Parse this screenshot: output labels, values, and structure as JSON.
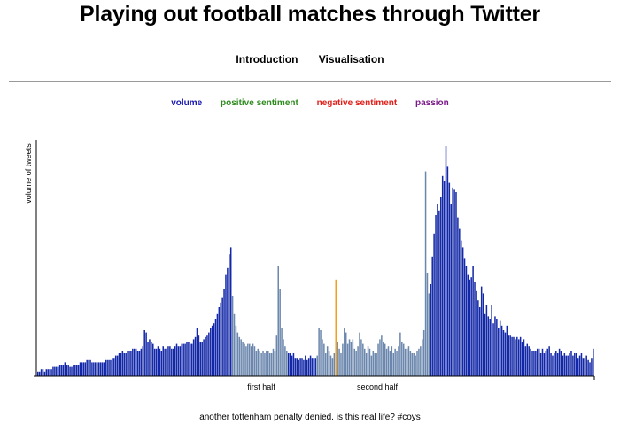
{
  "page": {
    "title": "Playing out football matches through Twitter",
    "nav": [
      "Introduction",
      "Visualisation"
    ],
    "caption": "another tottenham penalty denied. is this real life? #coys"
  },
  "legend": [
    {
      "label": "volume",
      "color": "#1a1ab0"
    },
    {
      "label": "positive sentiment",
      "color": "#2e8b1e"
    },
    {
      "label": "negative sentiment",
      "color": "#e0201a"
    },
    {
      "label": "passion",
      "color": "#7a1a8a"
    }
  ],
  "colors": {
    "volume": "#1328a8",
    "in_match": "#6b87ad",
    "marker": "#f0a020",
    "axis": "#000000"
  },
  "chart_data": {
    "type": "bar",
    "ylabel": "volume of tweets",
    "xlabel": "",
    "period_labels": [
      "first half",
      "second half"
    ],
    "ylim": [
      0,
      100
    ],
    "values": [
      2,
      2,
      3,
      3,
      2,
      3,
      3,
      3,
      3,
      4,
      4,
      4,
      4,
      5,
      5,
      5,
      6,
      5,
      5,
      4,
      4,
      5,
      5,
      5,
      5,
      6,
      6,
      6,
      6,
      7,
      7,
      7,
      6,
      6,
      6,
      6,
      6,
      6,
      6,
      6,
      7,
      7,
      7,
      7,
      8,
      8,
      9,
      9,
      10,
      10,
      11,
      10,
      10,
      11,
      11,
      11,
      12,
      12,
      12,
      11,
      11,
      12,
      13,
      20,
      19,
      15,
      16,
      15,
      14,
      12,
      12,
      13,
      12,
      11,
      13,
      12,
      12,
      13,
      13,
      12,
      12,
      13,
      14,
      13,
      13,
      14,
      14,
      14,
      15,
      15,
      14,
      14,
      16,
      17,
      21,
      18,
      15,
      15,
      16,
      17,
      18,
      19,
      21,
      22,
      23,
      25,
      27,
      30,
      32,
      34,
      38,
      44,
      47,
      53,
      56,
      35,
      27,
      22,
      19,
      17,
      16,
      15,
      14,
      13,
      14,
      14,
      13,
      14,
      13,
      11,
      12,
      11,
      10,
      11,
      10,
      11,
      11,
      10,
      10,
      12,
      11,
      18,
      48,
      38,
      21,
      16,
      13,
      11,
      10,
      10,
      9,
      10,
      8,
      8,
      7,
      8,
      8,
      7,
      9,
      7,
      8,
      9,
      8,
      8,
      8,
      9,
      21,
      20,
      16,
      14,
      10,
      13,
      11,
      9,
      8,
      10,
      11,
      15,
      12,
      10,
      14,
      21,
      19,
      14,
      16,
      15,
      16,
      12,
      11,
      13,
      19,
      16,
      14,
      12,
      10,
      13,
      12,
      9,
      11,
      10,
      10,
      14,
      16,
      18,
      15,
      14,
      12,
      13,
      11,
      13,
      10,
      12,
      11,
      13,
      19,
      15,
      14,
      12,
      12,
      13,
      11,
      10,
      10,
      9,
      11,
      12,
      13,
      16,
      20,
      89,
      45,
      36,
      40,
      52,
      62,
      70,
      75,
      72,
      78,
      87,
      85,
      100,
      91,
      84,
      75,
      82,
      81,
      80,
      69,
      64,
      59,
      56,
      51,
      48,
      44,
      42,
      43,
      48,
      41,
      37,
      33,
      30,
      39,
      36,
      27,
      31,
      26,
      25,
      31,
      23,
      26,
      25,
      21,
      24,
      22,
      20,
      19,
      22,
      18,
      18,
      17,
      17,
      16,
      17,
      16,
      17,
      15,
      16,
      13,
      14,
      13,
      12,
      11,
      11,
      11,
      12,
      12,
      10,
      12,
      10,
      11,
      12,
      13,
      10,
      9,
      10,
      11,
      10,
      12,
      11,
      9,
      10,
      9,
      9,
      10,
      11,
      9,
      10,
      10,
      8,
      9,
      10,
      8,
      8,
      9,
      7,
      6,
      8,
      12
    ],
    "in_match_ranges": [
      [
        115,
        147
      ],
      [
        165,
        231
      ]
    ],
    "marker_index": 176,
    "marker_value": 42
  }
}
